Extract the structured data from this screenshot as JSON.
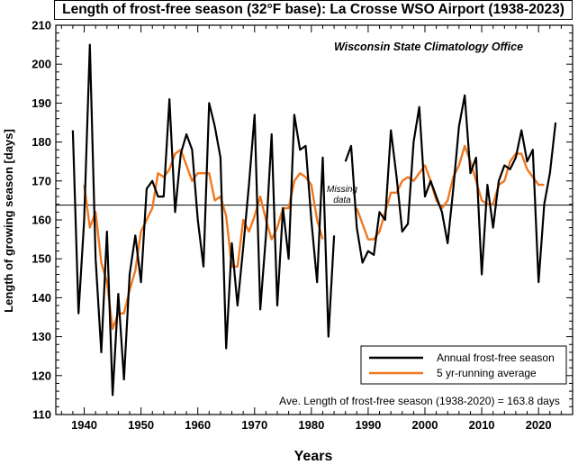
{
  "chart_data": {
    "type": "line",
    "title": "Length of frost-free season (32°F base): La Crosse WSO Airport (1938-2023)",
    "subtitle": "Wisconsin State Climatology Office",
    "xlabel": "Years",
    "ylabel": "Length of growing season [days]",
    "xlim": [
      1935,
      2026
    ],
    "ylim": [
      110,
      210
    ],
    "xticks": [
      1940,
      1950,
      1960,
      1970,
      1980,
      1990,
      2000,
      2010,
      2020
    ],
    "yticks": [
      110,
      120,
      130,
      140,
      150,
      160,
      170,
      180,
      190,
      200,
      210
    ],
    "reference_line": {
      "value": 163.8
    },
    "annotations": {
      "missing_line1": "Missing",
      "missing_line2": "data",
      "average_note": "Ave. Length of frost-free season (1938-2020) = 163.8 days"
    },
    "legend": {
      "position": "bottom-right"
    },
    "series": [
      {
        "name": "Annual frost-free season",
        "color": "#000000",
        "segments": [
          {
            "x": [
              1938,
              1939,
              1940,
              1941,
              1942,
              1943,
              1944,
              1945,
              1946,
              1947,
              1948,
              1949,
              1950,
              1951,
              1952,
              1953,
              1954,
              1955,
              1956,
              1957,
              1958,
              1959,
              1960,
              1961,
              1962,
              1963,
              1964,
              1965,
              1966,
              1967,
              1968,
              1969,
              1970,
              1971,
              1972,
              1973,
              1974,
              1975,
              1976,
              1977,
              1978,
              1979,
              1980,
              1981,
              1982,
              1983,
              1984
            ],
            "y": [
              183,
              136,
              160,
              205,
              150,
              126,
              157,
              115,
              141,
              119,
              146,
              156,
              144,
              168,
              170,
              166,
              166,
              191,
              162,
              177,
              182,
              178,
              160,
              148,
              190,
              184,
              176,
              127,
              154,
              138,
              153,
              169,
              187,
              137,
              156,
              182,
              138,
              163,
              150,
              187,
              178,
              179,
              160,
              144,
              176,
              130,
              156
            ]
          },
          {
            "x": [
              1986,
              1987,
              1988,
              1989,
              1990,
              1991,
              1992,
              1993,
              1994,
              1995,
              1996,
              1997,
              1998,
              1999,
              2000,
              2001,
              2002,
              2003,
              2004,
              2005,
              2006,
              2007,
              2008,
              2009,
              2010,
              2011,
              2012,
              2013,
              2014,
              2015,
              2016,
              2017,
              2018,
              2019,
              2020,
              2021,
              2022,
              2023
            ],
            "y": [
              175,
              179,
              158,
              149,
              152,
              151,
              162,
              160,
              183,
              171,
              157,
              159,
              180,
              189,
              166,
              170,
              166,
              162,
              154,
              168,
              184,
              192,
              172,
              176,
              146,
              169,
              158,
              170,
              174,
              173,
              176,
              183,
              175,
              178,
              144,
              164,
              172,
              185
            ]
          }
        ]
      },
      {
        "name": "5 yr-running average",
        "color": "#f07820",
        "segments": [
          {
            "x": [
              1940,
              1941,
              1942,
              1943,
              1944,
              1945,
              1946,
              1947,
              1948,
              1949,
              1950,
              1951,
              1952,
              1953,
              1954,
              1955,
              1956,
              1957,
              1958,
              1959,
              1960,
              1961,
              1962,
              1963,
              1964,
              1965,
              1966,
              1967,
              1968,
              1969,
              1970,
              1971,
              1972,
              1973,
              1974,
              1975,
              1976,
              1977,
              1978,
              1979,
              1980,
              1981,
              1982
            ],
            "y": [
              169,
              158,
              162,
              149,
              144,
              132,
              136,
              136,
              142,
              147,
              157,
              160,
              163,
              172,
              171,
              173,
              177,
              178,
              174,
              170,
              172,
              172,
              172,
              165,
              166,
              161,
              148,
              148,
              160,
              157,
              161,
              166,
              160,
              155,
              158,
              163,
              163,
              170,
              172,
              171,
              169,
              160,
              155
            ]
          },
          {
            "x": [
              1988,
              1989,
              1990,
              1991,
              1992,
              1993,
              1994,
              1995,
              1996,
              1997,
              1998,
              1999,
              2000,
              2001,
              2002,
              2003,
              2004,
              2005,
              2006,
              2007,
              2008,
              2009,
              2010,
              2011,
              2012,
              2013,
              2014,
              2015,
              2016,
              2017,
              2018,
              2019,
              2020,
              2021
            ],
            "y": [
              163,
              159,
              155,
              155,
              157,
              162,
              167,
              167,
              170,
              171,
              170,
              172,
              174,
              170,
              165,
              163,
              165,
              171,
              174,
              179,
              175,
              170,
              165,
              164,
              164,
              169,
              170,
              175,
              177,
              177,
              173,
              171,
              169,
              169
            ]
          }
        ]
      }
    ]
  }
}
